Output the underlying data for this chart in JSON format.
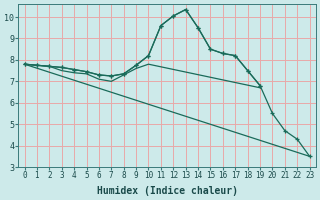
{
  "xlabel": "Humidex (Indice chaleur)",
  "background_color": "#cdeaea",
  "grid_color": "#e8a8a8",
  "line_color": "#1a6b5a",
  "xlim": [
    -0.5,
    23.5
  ],
  "ylim": [
    3,
    10.6
  ],
  "yticks": [
    3,
    4,
    5,
    6,
    7,
    8,
    9,
    10
  ],
  "xticks": [
    0,
    1,
    2,
    3,
    4,
    5,
    6,
    7,
    8,
    9,
    10,
    11,
    12,
    13,
    14,
    15,
    16,
    17,
    18,
    19,
    20,
    21,
    22,
    23
  ],
  "line1_x": [
    0,
    1,
    2,
    3,
    4,
    5,
    6,
    7,
    8,
    9,
    10,
    11,
    12,
    13,
    14,
    15,
    16,
    17,
    18,
    19
  ],
  "line1_y": [
    7.8,
    7.75,
    7.7,
    7.65,
    7.55,
    7.45,
    7.3,
    7.25,
    7.35,
    7.75,
    8.2,
    9.6,
    10.05,
    10.35,
    9.5,
    8.5,
    8.3,
    8.2,
    7.5,
    6.8
  ],
  "line2_x": [
    0,
    1,
    2,
    3,
    4,
    5,
    6,
    7,
    8,
    9,
    10,
    11,
    12,
    13,
    14,
    15,
    16,
    17,
    18,
    19,
    20,
    21,
    22,
    23
  ],
  "line2_y": [
    7.8,
    7.75,
    7.7,
    7.65,
    7.55,
    7.45,
    7.3,
    7.25,
    7.35,
    7.75,
    8.2,
    9.6,
    10.05,
    10.35,
    9.5,
    8.5,
    8.3,
    8.2,
    7.5,
    6.8,
    5.5,
    4.7,
    4.3,
    3.5
  ],
  "line3_x": [
    0,
    1,
    2,
    3,
    4,
    5,
    6,
    7,
    8,
    9,
    10,
    19
  ],
  "line3_y": [
    7.8,
    7.75,
    7.7,
    7.5,
    7.4,
    7.35,
    7.1,
    7.0,
    7.3,
    7.6,
    7.8,
    6.7
  ],
  "line4_x": [
    0,
    23
  ],
  "line4_y": [
    7.8,
    3.5
  ],
  "xlabel_fontsize": 7,
  "tick_fontsize": 5.5
}
